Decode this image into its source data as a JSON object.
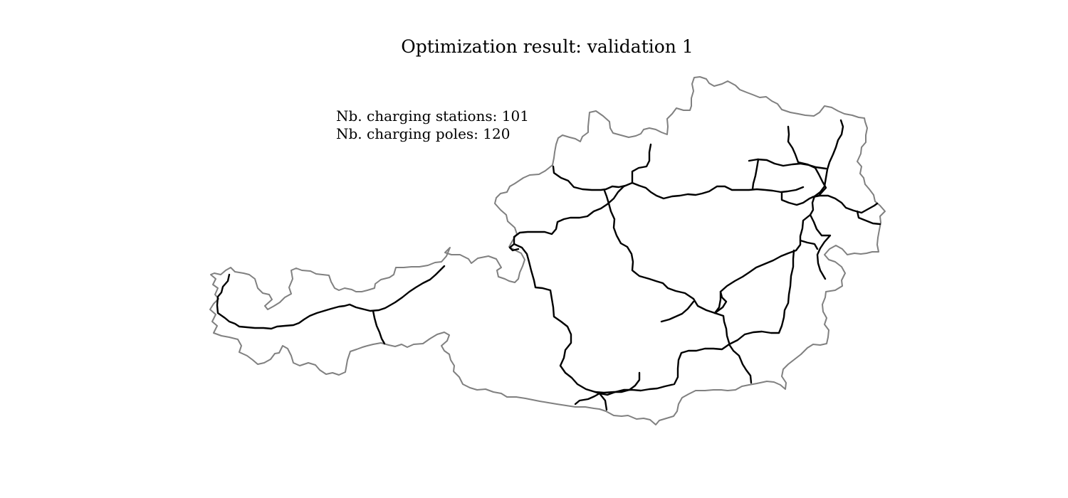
{
  "figure": {
    "title": "Optimization result: validation 1"
  },
  "annotation": {
    "stations_text": "Nb. charging stations: 101",
    "poles_text": "Nb. charging poles: 120"
  },
  "results": {
    "nb_charging_stations": 101,
    "nb_charging_poles": 120
  },
  "map": {
    "region": "Austria",
    "border_color": "#808080",
    "road_color": "#000000",
    "background_color": "#ffffff"
  }
}
